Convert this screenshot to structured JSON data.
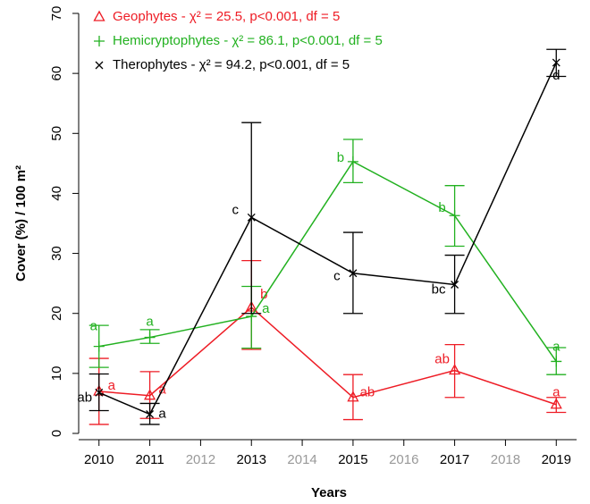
{
  "chart_data": {
    "type": "line",
    "x_label": "Years",
    "y_label": "Cover (%) / 100 m²",
    "x": [
      2010,
      2011,
      2013,
      2015,
      2017,
      2019
    ],
    "xlim": [
      2009.6,
      2019.4
    ],
    "xticks": [
      2010,
      2011,
      2012,
      2013,
      2014,
      2015,
      2016,
      2017,
      2018,
      2019
    ],
    "ylim": [
      0,
      70
    ],
    "yticks": [
      0,
      10,
      20,
      30,
      40,
      50,
      60,
      70
    ],
    "series": [
      {
        "name": "Geophytes - χ² = 25.5, p<0.001, df = 5",
        "color": "#ee1c25",
        "marker": "triangle",
        "values": [
          7,
          6.3,
          21,
          6,
          10.5,
          4.8
        ],
        "lower": [
          1.5,
          2.5,
          14,
          2.3,
          6,
          3.5
        ],
        "upper": [
          12.5,
          10.3,
          28.8,
          9.8,
          14.8,
          6
        ],
        "letters": [
          "a",
          "a",
          "b",
          "ab",
          "ab",
          "a"
        ]
      },
      {
        "name": "Hemicryptophytes - χ² = 86.1, p<0.001, df = 5",
        "color": "#22b120",
        "marker": "plus",
        "values": [
          14.5,
          16,
          19.5,
          45.3,
          36.3,
          12
        ],
        "lower": [
          11,
          15,
          14.2,
          41.8,
          31.2,
          9.8
        ],
        "upper": [
          18,
          17.3,
          24.5,
          49,
          41.3,
          14.3
        ],
        "letters": [
          "a",
          "a",
          "a",
          "b",
          "b",
          "a"
        ]
      },
      {
        "name": "Therophytes - χ² = 94.2, p<0.001, df = 5",
        "color": "#000000",
        "marker": "cross",
        "values": [
          6.8,
          3.2,
          36,
          26.7,
          24.8,
          61.8
        ],
        "lower": [
          3.8,
          1.5,
          20,
          20,
          20,
          59.5
        ],
        "upper": [
          9.9,
          5,
          51.8,
          33.5,
          29.7,
          64
        ],
        "letters": [
          "ab",
          "a",
          "c",
          "c",
          "bc",
          "d"
        ]
      }
    ]
  }
}
